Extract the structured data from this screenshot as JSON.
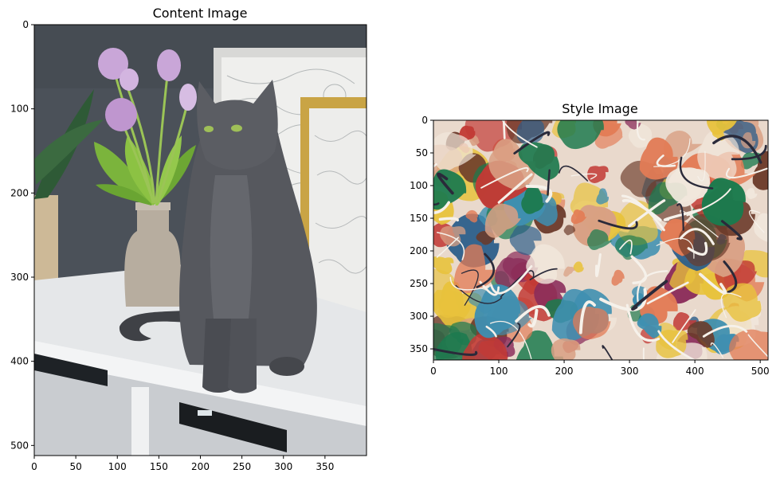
{
  "chart_data": [
    {
      "type": "image",
      "title": "Content Image",
      "xlabel": "",
      "ylabel": "",
      "image_width": 400,
      "image_height": 512,
      "xlim": [
        0,
        400
      ],
      "ylim": [
        512,
        0
      ],
      "x_ticks": [
        0,
        50,
        100,
        150,
        200,
        250,
        300,
        350
      ],
      "y_ticks": [
        0,
        100,
        200,
        300,
        400,
        500
      ],
      "grid": false,
      "colors": {
        "wall": "#4a5058",
        "desk": "#e6e8ea",
        "cat": "#56585e",
        "vase": "#b9aea0",
        "frame": "#c9a445",
        "tulip": "#c9a8d8",
        "leaves": "#7bb43c"
      }
    },
    {
      "type": "image",
      "title": "Style Image",
      "xlabel": "",
      "ylabel": "",
      "image_width": 512,
      "image_height": 367,
      "xlim": [
        0,
        512
      ],
      "ylim": [
        367,
        0
      ],
      "x_ticks": [
        0,
        100,
        200,
        300,
        400,
        500
      ],
      "y_ticks": [
        0,
        50,
        100,
        150,
        200,
        250,
        300,
        350
      ],
      "grid": false,
      "colors": {
        "palette": [
          "#c23a35",
          "#e27b55",
          "#d9a084",
          "#2b5d8a",
          "#1c7a4e",
          "#8a2c5a",
          "#e8c23c",
          "#f1e7dc",
          "#6b3a2a",
          "#3f8fb0"
        ]
      }
    }
  ]
}
